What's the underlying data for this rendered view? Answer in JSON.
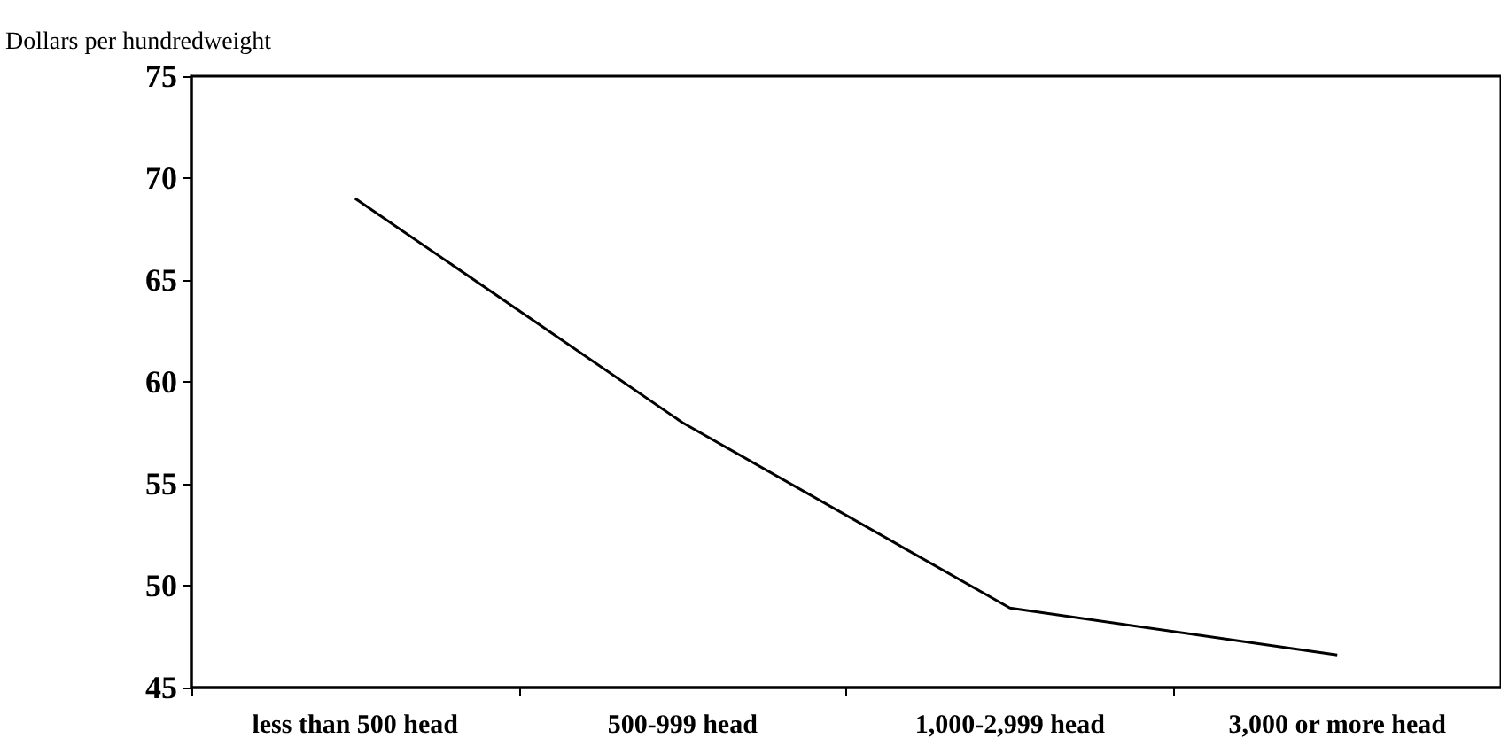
{
  "chart_data": {
    "type": "line",
    "ylabel": "Dollars per hundredweight",
    "categories": [
      "less than 500 head",
      "500-999 head",
      "1,000-2,999 head",
      "3,000 or more head"
    ],
    "series": [
      {
        "color": "#000000",
        "values": [
          69.0,
          58.0,
          48.9,
          46.6
        ]
      }
    ],
    "ylim": [
      45,
      75
    ],
    "yticks": [
      45,
      50,
      55,
      60,
      65,
      70,
      75
    ],
    "grid": false,
    "marker": "none",
    "line_style": "solid"
  }
}
